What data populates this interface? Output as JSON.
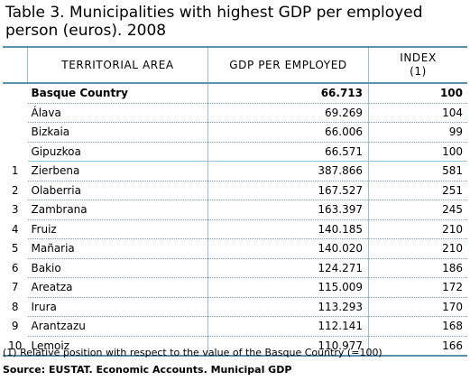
{
  "title": "Table 3. Municipalities with highest GDP per employed person (euros). 2008",
  "columns": {
    "area": "TERRITORIAL AREA",
    "gdp": "GDP PER EMPLOYED",
    "index_line1": "INDEX",
    "index_line2": "(1)"
  },
  "basque": {
    "name": "Basque Country",
    "gdp": "66.713",
    "index": "100"
  },
  "provinces": [
    {
      "name": "Álava",
      "gdp": "69.269",
      "index": "104"
    },
    {
      "name": "Bizkaia",
      "gdp": "66.006",
      "index": "99"
    },
    {
      "name": "Gipuzkoa",
      "gdp": "66.571",
      "index": "100"
    }
  ],
  "municipalities": [
    {
      "rank": "1",
      "name": "Zierbena",
      "gdp": "387.866",
      "index": "581"
    },
    {
      "rank": "2",
      "name": "Olaberria",
      "gdp": "167.527",
      "index": "251"
    },
    {
      "rank": "3",
      "name": "Zambrana",
      "gdp": "163.397",
      "index": "245"
    },
    {
      "rank": "4",
      "name": "Fruiz",
      "gdp": "140.185",
      "index": "210"
    },
    {
      "rank": "5",
      "name": "Mañaria",
      "gdp": "140.020",
      "index": "210"
    },
    {
      "rank": "6",
      "name": "Bakio",
      "gdp": "124.271",
      "index": "186"
    },
    {
      "rank": "7",
      "name": "Areatza",
      "gdp": "115.009",
      "index": "172"
    },
    {
      "rank": "8",
      "name": "Irura",
      "gdp": "113.293",
      "index": "170"
    },
    {
      "rank": "9",
      "name": "Arantzazu",
      "gdp": "112.141",
      "index": "168"
    },
    {
      "rank": "10",
      "name": "Lemoiz",
      "gdp": "110.977",
      "index": "166"
    }
  ],
  "note": "(1) Relative position with respect to the value of the Basque Country (=100)",
  "source": "Source: EUSTAT. Economic Accounts. Municipal GDP"
}
